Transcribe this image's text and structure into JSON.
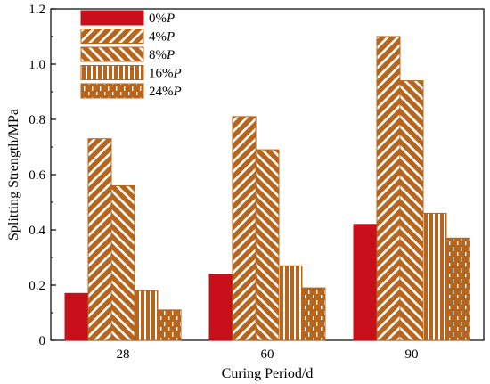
{
  "chart_data": {
    "type": "bar",
    "xlabel": "Curing Period/d",
    "ylabel": "Splitting Strength/MPa",
    "ylim": [
      0,
      1.2
    ],
    "yticks": [
      "0",
      "0.2",
      "0.4",
      "0.6",
      "0.8",
      "1.0",
      "1.2"
    ],
    "categories": [
      "28",
      "60",
      "90"
    ],
    "legend_position": "top-left",
    "grid": false,
    "series": [
      {
        "name": "0%",
        "name_suffix": "P",
        "values": [
          0.17,
          0.24,
          0.42
        ],
        "pattern": "solid",
        "color": "#c8101a"
      },
      {
        "name": "4%",
        "name_suffix": "P",
        "values": [
          0.73,
          0.81,
          1.1
        ],
        "pattern": "forward-diagonal",
        "color": "#b5651d"
      },
      {
        "name": "8%",
        "name_suffix": "P",
        "values": [
          0.56,
          0.69,
          0.94
        ],
        "pattern": "backward-diagonal",
        "color": "#b5651d"
      },
      {
        "name": "16%",
        "name_suffix": "P",
        "values": [
          0.18,
          0.27,
          0.46
        ],
        "pattern": "vertical",
        "color": "#b5651d"
      },
      {
        "name": "24%",
        "name_suffix": "P",
        "values": [
          0.11,
          0.19,
          0.37
        ],
        "pattern": "dashed-vertical",
        "color": "#b5651d"
      }
    ]
  }
}
